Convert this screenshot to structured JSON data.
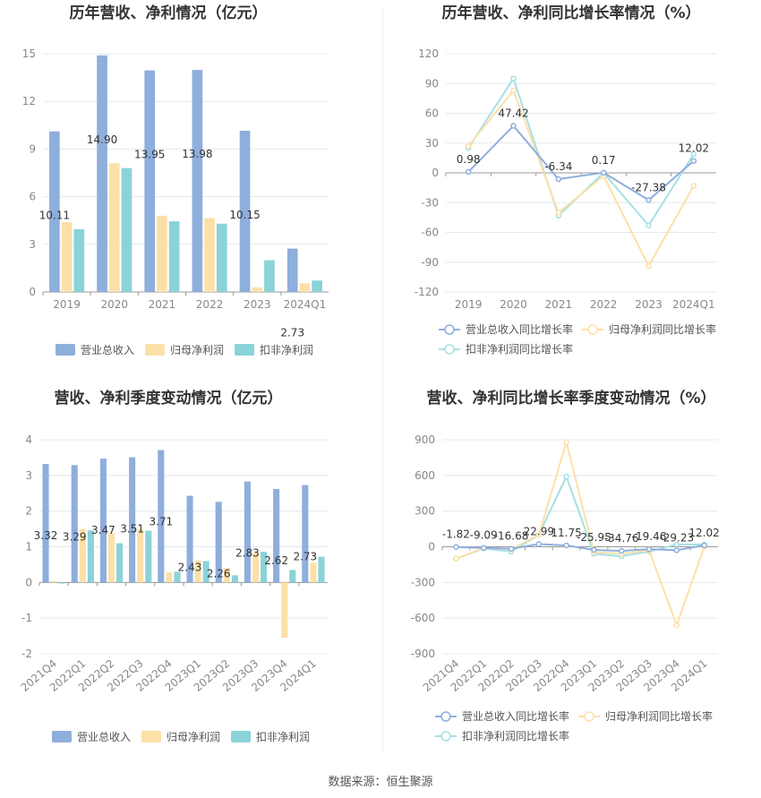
{
  "footer": {
    "source": "数据来源：恒生聚源"
  },
  "colors": {
    "revenue": "#8eaedc",
    "net_profit": "#fde0a8",
    "deducted_profit": "#8ad3d8",
    "grid": "#e6e8ee",
    "axis_text": "#888888",
    "label_text": "#333333"
  },
  "chart_data": [
    {
      "type": "bar",
      "title": "历年营收、净利情况（亿元）",
      "categories": [
        "2019",
        "2020",
        "2021",
        "2022",
        "2023",
        "2024Q1"
      ],
      "ylim": [
        0,
        15
      ],
      "yticks": [
        0,
        3,
        6,
        9,
        12,
        15
      ],
      "series": [
        {
          "name": "营业总收入",
          "values": [
            10.11,
            14.9,
            13.95,
            13.98,
            10.15,
            2.73
          ],
          "labels": [
            "10.11",
            "14.90",
            "13.95",
            "13.98",
            "10.15",
            "2.73"
          ]
        },
        {
          "name": "归母净利润",
          "values": [
            4.4,
            8.1,
            4.8,
            4.65,
            0.3,
            0.55
          ]
        },
        {
          "name": "扣非净利润",
          "values": [
            3.95,
            7.8,
            4.45,
            4.3,
            2.0,
            0.72
          ]
        }
      ],
      "legend": "bottom"
    },
    {
      "type": "line",
      "title": "历年营收、净利同比增长率情况（%）",
      "categories": [
        "2019",
        "2020",
        "2021",
        "2022",
        "2023",
        "2024Q1"
      ],
      "ylim": [
        -120,
        120
      ],
      "yticks": [
        -120,
        -90,
        -60,
        -30,
        0,
        30,
        60,
        90,
        120
      ],
      "series": [
        {
          "name": "营业总收入同比增长率",
          "values": [
            0.98,
            47.42,
            -6.34,
            0.17,
            -27.38,
            12.02
          ],
          "labels": [
            "0.98",
            "47.42",
            "-6.34",
            "0.17",
            "-27.38",
            "12.02"
          ]
        },
        {
          "name": "归母净利润同比增长率",
          "values": [
            27,
            83,
            -40,
            -3,
            -94,
            -13
          ]
        },
        {
          "name": "扣非净利润同比增长率",
          "values": [
            25,
            95,
            -43,
            0,
            -53,
            19
          ]
        }
      ],
      "legend": "bottom"
    },
    {
      "type": "bar",
      "title": "营收、净利季度变动情况（亿元）",
      "categories": [
        "2021Q4",
        "2022Q1",
        "2022Q2",
        "2022Q3",
        "2022Q4",
        "2023Q1",
        "2023Q2",
        "2023Q3",
        "2023Q4",
        "2024Q1"
      ],
      "ylim": [
        -2,
        4
      ],
      "yticks": [
        -2,
        -1,
        0,
        1,
        2,
        3,
        4
      ],
      "series": [
        {
          "name": "营业总收入",
          "values": [
            3.32,
            3.29,
            3.47,
            3.51,
            3.71,
            2.43,
            2.26,
            2.83,
            2.62,
            2.73
          ],
          "labels": [
            "3.32",
            "3.29",
            "3.47",
            "3.51",
            "3.71",
            "2.43",
            "2.26",
            "2.83",
            "2.62",
            "2.73"
          ]
        },
        {
          "name": "归母净利润",
          "values": [
            0.03,
            1.5,
            1.38,
            1.5,
            0.28,
            0.62,
            0.4,
            0.83,
            -1.55,
            0.55
          ]
        },
        {
          "name": "扣非净利润",
          "values": [
            -0.03,
            1.46,
            1.1,
            1.45,
            0.3,
            0.6,
            0.2,
            0.86,
            0.35,
            0.72
          ]
        }
      ],
      "legend": "bottom"
    },
    {
      "type": "line",
      "title": "营收、净利同比增长率季度变动情况（%）",
      "categories": [
        "2021Q4",
        "2022Q1",
        "2022Q2",
        "2022Q3",
        "2022Q4",
        "2023Q1",
        "2023Q2",
        "2023Q3",
        "2023Q4",
        "2024Q1"
      ],
      "ylim": [
        -900,
        900
      ],
      "yticks": [
        -900,
        -600,
        -300,
        0,
        300,
        600,
        900
      ],
      "series": [
        {
          "name": "营业总收入同比增长率",
          "values": [
            -1.82,
            -9.09,
            -16.68,
            22.99,
            11.75,
            -25.95,
            -34.76,
            -19.46,
            -29.23,
            12.02
          ],
          "labels": [
            "-1.82",
            "-9.09",
            "-16.68",
            "22.99",
            "11.75",
            "-25.95",
            "-34.76",
            "-19.46",
            "-29.23",
            "12.02"
          ]
        },
        {
          "name": "归母净利润同比增长率",
          "values": [
            -100,
            -10,
            -20,
            100,
            880,
            -45,
            -60,
            -30,
            -660,
            -2
          ]
        },
        {
          "name": "扣非净利润同比增长率",
          "values": [
            -100,
            -15,
            -40,
            100,
            590,
            -60,
            -80,
            -40,
            20,
            18
          ]
        }
      ],
      "legend": "bottom"
    }
  ]
}
